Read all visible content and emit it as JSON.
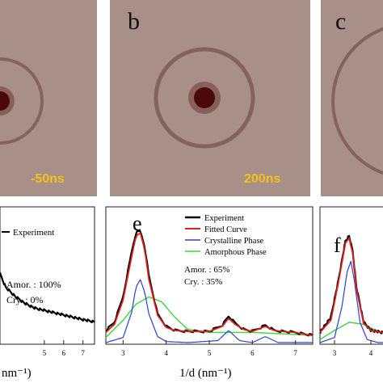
{
  "panels": {
    "a": {
      "letter": "",
      "time": "-50ns"
    },
    "b": {
      "letter": "b",
      "time": "200ns"
    },
    "c": {
      "letter": "c",
      "time": ""
    },
    "d": {
      "letter": "",
      "legend": [
        "Experiment"
      ],
      "amor_line": "Amor. : 100%",
      "cry_line": "Cry.    : 0%",
      "xlabel": "nm⁻¹)"
    },
    "e": {
      "letter": "e",
      "legend": [
        "Experiment",
        "Fitted Curve",
        "Crystalline Phase",
        "Amorphous Phase"
      ],
      "amor_line": "Amor. : 65%",
      "cry_line": "Cry.    : 35%",
      "xlabel": "1/d (nm⁻¹)"
    },
    "f": {
      "letter": "f"
    }
  },
  "colors": {
    "diffraction_bg": "#a88f88",
    "ring": "#7e5b58",
    "spot": "#4a0a0c",
    "time_text": "#f2c21b",
    "experiment": "#000000",
    "fitted": "#e0201e",
    "crystalline": "#2b3fd6",
    "amorphous": "#3ad63a"
  },
  "chart_data": [
    {
      "type": "line",
      "panel": "d",
      "x_ticks": [
        5,
        6,
        7
      ],
      "xlim": [
        2.7,
        7.6
      ],
      "series": [
        {
          "name": "Experiment",
          "x": [
            2.7,
            3.0,
            3.5,
            4.0,
            4.5,
            5.0,
            5.5,
            6.0,
            6.5,
            7.0,
            7.6
          ],
          "y": [
            0.3,
            0.24,
            0.2,
            0.17,
            0.15,
            0.14,
            0.13,
            0.12,
            0.11,
            0.1,
            0.09
          ]
        }
      ]
    },
    {
      "type": "line",
      "panel": "e",
      "xlabel": "1/d (nm⁻¹)",
      "x_ticks": [
        3,
        4,
        5,
        6,
        7
      ],
      "xlim": [
        2.6,
        7.4
      ],
      "ylim": [
        0,
        1.25
      ],
      "series": [
        {
          "name": "Experiment",
          "x": [
            2.6,
            2.8,
            3.0,
            3.2,
            3.3,
            3.4,
            3.5,
            3.6,
            3.8,
            4.0,
            4.2,
            4.5,
            5.0,
            5.3,
            5.45,
            5.6,
            5.8,
            6.0,
            6.3,
            6.5,
            6.7,
            7.0,
            7.4
          ],
          "y": [
            0.12,
            0.2,
            0.45,
            0.9,
            1.08,
            1.1,
            0.95,
            0.65,
            0.28,
            0.16,
            0.12,
            0.11,
            0.11,
            0.17,
            0.26,
            0.19,
            0.13,
            0.11,
            0.17,
            0.12,
            0.11,
            0.1,
            0.07
          ]
        },
        {
          "name": "Fitted Curve",
          "x": [
            2.6,
            2.8,
            3.0,
            3.2,
            3.3,
            3.4,
            3.5,
            3.6,
            3.8,
            4.0,
            4.2,
            4.5,
            5.0,
            5.3,
            5.45,
            5.6,
            5.8,
            6.0,
            6.3,
            6.5,
            6.7,
            7.0,
            7.4
          ],
          "y": [
            0.1,
            0.18,
            0.42,
            0.85,
            1.05,
            1.08,
            0.92,
            0.62,
            0.27,
            0.15,
            0.12,
            0.11,
            0.11,
            0.16,
            0.24,
            0.18,
            0.13,
            0.11,
            0.16,
            0.12,
            0.11,
            0.1,
            0.07
          ]
        },
        {
          "name": "Crystalline Phase",
          "x": [
            2.6,
            3.0,
            3.2,
            3.3,
            3.4,
            3.5,
            3.6,
            3.8,
            4.0,
            4.5,
            5.2,
            5.45,
            5.7,
            6.0,
            6.3,
            6.6,
            7.0,
            7.4
          ],
          "y": [
            0.0,
            0.05,
            0.3,
            0.55,
            0.62,
            0.5,
            0.28,
            0.06,
            0.01,
            0.0,
            0.02,
            0.12,
            0.02,
            0.0,
            0.06,
            0.0,
            0.0,
            0.0
          ]
        },
        {
          "name": "Amorphous Phase",
          "x": [
            2.6,
            3.0,
            3.3,
            3.6,
            3.9,
            4.2,
            4.5,
            5.0,
            5.5,
            6.0,
            6.5,
            7.0,
            7.4
          ],
          "y": [
            0.05,
            0.22,
            0.38,
            0.45,
            0.4,
            0.25,
            0.13,
            0.1,
            0.1,
            0.1,
            0.09,
            0.08,
            0.07
          ]
        }
      ]
    },
    {
      "type": "line",
      "panel": "f",
      "x_ticks": [
        3,
        4
      ],
      "xlim": [
        2.6,
        4.6
      ],
      "ylim": [
        0,
        1.25
      ],
      "series": [
        {
          "name": "Experiment",
          "x": [
            2.6,
            2.9,
            3.1,
            3.3,
            3.4,
            3.5,
            3.6,
            3.8,
            4.0,
            4.3,
            4.6
          ],
          "y": [
            0.1,
            0.25,
            0.6,
            1.0,
            1.05,
            0.9,
            0.55,
            0.2,
            0.12,
            0.1,
            0.1
          ]
        },
        {
          "name": "Fitted Curve",
          "x": [
            2.6,
            2.9,
            3.1,
            3.3,
            3.4,
            3.5,
            3.6,
            3.8,
            4.0,
            4.3,
            4.6
          ],
          "y": [
            0.1,
            0.22,
            0.58,
            0.98,
            1.03,
            0.88,
            0.53,
            0.19,
            0.12,
            0.1,
            0.1
          ]
        },
        {
          "name": "Crystalline Phase",
          "x": [
            2.6,
            3.0,
            3.2,
            3.35,
            3.45,
            3.55,
            3.7,
            3.9,
            4.2,
            4.6
          ],
          "y": [
            0.0,
            0.05,
            0.35,
            0.7,
            0.8,
            0.6,
            0.2,
            0.03,
            0.0,
            0.0
          ]
        },
        {
          "name": "Amorphous Phase",
          "x": [
            2.6,
            3.0,
            3.4,
            3.8,
            4.2,
            4.6
          ],
          "y": [
            0.03,
            0.12,
            0.2,
            0.18,
            0.11,
            0.09
          ]
        }
      ]
    }
  ]
}
